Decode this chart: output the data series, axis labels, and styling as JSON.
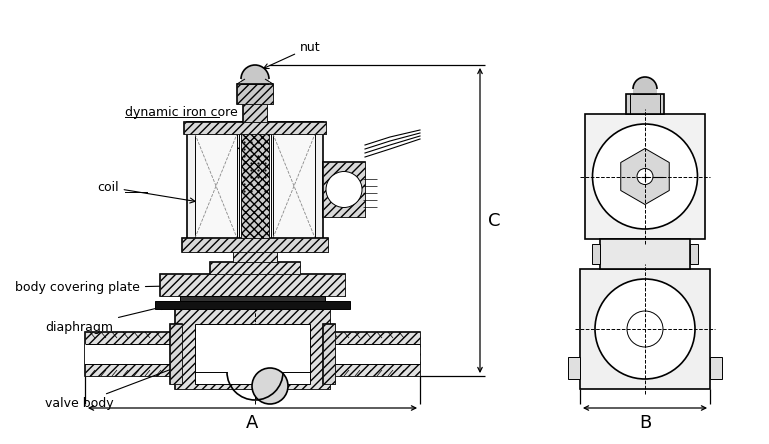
{
  "bg_color": "#ffffff",
  "labels": {
    "nut": "nut",
    "dynamic_iron_core": "dynamic iron core",
    "coil": "coil",
    "body_covering_plate": "body covering plate",
    "diaphragm": "diaphragm",
    "valve_body": "valve body"
  },
  "dim_labels": {
    "A": "A",
    "B": "B",
    "C": "C"
  }
}
